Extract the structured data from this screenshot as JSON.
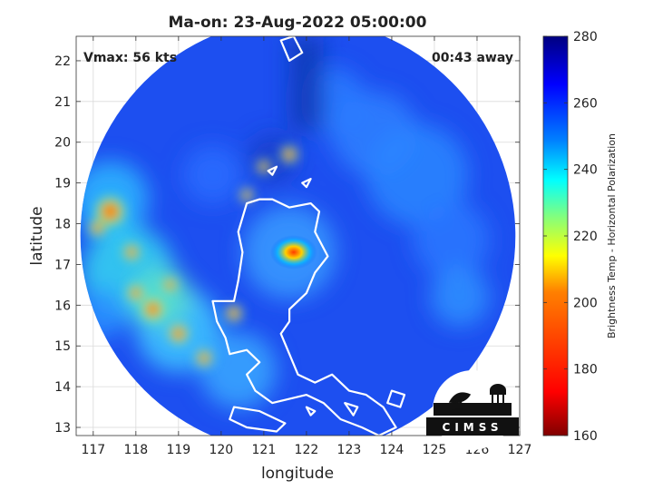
{
  "chart_data": {
    "type": "heatmap",
    "title": "Ma-on: 23-Aug-2022 05:00:00",
    "xlabel": "longitude",
    "ylabel": "latitude",
    "xlim": [
      116.6,
      127
    ],
    "ylim": [
      12.8,
      22.6
    ],
    "x_ticks": [
      "117",
      "118",
      "119",
      "120",
      "121",
      "122",
      "123",
      "124",
      "125",
      "126",
      "127"
    ],
    "y_ticks": [
      "13",
      "14",
      "15",
      "16",
      "17",
      "18",
      "19",
      "20",
      "21",
      "22"
    ],
    "grid": true,
    "annotations": {
      "vmax": "Vmax: 56 kts",
      "time_offset": "00:43 away"
    },
    "storm_center": {
      "lon": 121.7,
      "lat": 17.3
    },
    "scan_center": {
      "lon": 121.8,
      "lat": 17.7,
      "radius_deg": 5.1
    },
    "colorbar": {
      "label": "Brightness Temp - Horizontal Polarization",
      "min": 160,
      "max": 280,
      "ticks": [
        "160",
        "180",
        "200",
        "220",
        "240",
        "260",
        "280"
      ],
      "colors": [
        "#800000",
        "#ff0000",
        "#ff8000",
        "#ffff00",
        "#80ff80",
        "#00ffff",
        "#0080ff",
        "#0000ff",
        "#000080"
      ]
    },
    "logo_text": "CIMSS"
  }
}
